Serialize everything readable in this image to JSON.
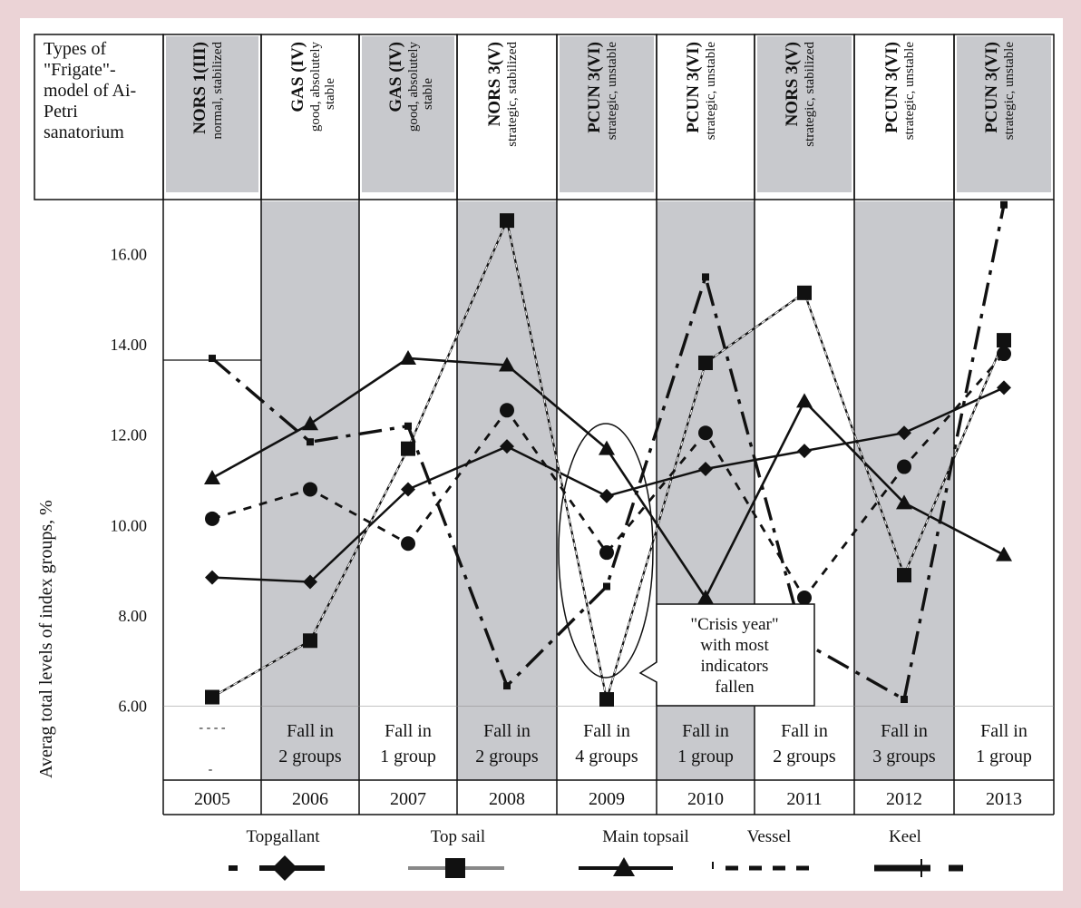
{
  "header_corner_label": [
    "Types of",
    "\"Frigate\"-",
    "model of Ai-",
    "Petri",
    "sanatorium"
  ],
  "column_headers": [
    {
      "year": "2005",
      "type": "NORS 1(III)",
      "desc": "normal, stabilized",
      "shaded": true
    },
    {
      "year": "2006",
      "type": "GAS (IV)",
      "desc": "good, absolutely stable",
      "shaded": false
    },
    {
      "year": "2007",
      "type": "GAS (IV)",
      "desc": "good, absolutely stable",
      "shaded": true
    },
    {
      "year": "2008",
      "type": "NORS 3(V)",
      "desc": "strategic, stabilized",
      "shaded": false
    },
    {
      "year": "2009",
      "type": "PCUN 3(VI)",
      "desc": "strategic, unstable",
      "shaded": true
    },
    {
      "year": "2010",
      "type": "PCUN 3(VI)",
      "desc": "strategic, unstable",
      "shaded": false
    },
    {
      "year": "2011",
      "type": "NORS 3(V)",
      "desc": "strategic, stabilized",
      "shaded": true
    },
    {
      "year": "2012",
      "type": "PCUN 3(VI)",
      "desc": "strategic, unstable",
      "shaded": false
    },
    {
      "year": "2013",
      "type": "PCUN 3(VI)",
      "desc": "strategic, unstable",
      "shaded": true
    }
  ],
  "plot_shading": [
    false,
    true,
    false,
    true,
    false,
    true,
    false,
    true,
    false
  ],
  "fall_labels": [
    [
      "",
      ""
    ],
    [
      "Fall in",
      "2 groups"
    ],
    [
      "Fall in",
      "1 group"
    ],
    [
      "Fall in",
      "2 groups"
    ],
    [
      "Fall in",
      "4 groups"
    ],
    [
      "Fall in",
      "1 group"
    ],
    [
      "Fall in",
      "2 groups"
    ],
    [
      "Fall in",
      "3 groups"
    ],
    [
      "Fall in",
      "1 group"
    ]
  ],
  "callout": [
    "\"Crisis year\"",
    "with most",
    "indicators",
    "fallen"
  ],
  "legend": [
    {
      "label": "Topgallant",
      "marker": "diamond",
      "dash": "dashdot"
    },
    {
      "label": "Top sail",
      "marker": "square",
      "dash": "solid-gray"
    },
    {
      "label": "Main topsail",
      "marker": "triangle",
      "dash": "solid"
    },
    {
      "label": "Vessel",
      "marker": "none",
      "dash": "dashed"
    },
    {
      "label": "Keel",
      "marker": "tick",
      "dash": "longdash"
    }
  ],
  "colors": {
    "background": "#ebd3d6",
    "panel": "#ffffff",
    "shade": "#c8c9cd",
    "ink": "#111111"
  },
  "chart_data": {
    "type": "line",
    "categories": [
      "2005",
      "2006",
      "2007",
      "2008",
      "2009",
      "2010",
      "2011",
      "2012",
      "2013"
    ],
    "ylabel": "Averag total levels of index groups,  %",
    "xlabel": "",
    "yticks": [
      "6.00",
      "8.00",
      "10.00",
      "12.00",
      "14.00",
      "16.00"
    ],
    "ylim": [
      6,
      16
    ],
    "series": [
      {
        "name": "Topgallant",
        "values": [
          8.85,
          8.75,
          10.8,
          11.75,
          10.65,
          11.25,
          11.65,
          12.05,
          13.05
        ]
      },
      {
        "name": "Top sail",
        "values": [
          6.2,
          7.45,
          11.7,
          16.75,
          6.15,
          13.6,
          15.15,
          8.9,
          14.1
        ]
      },
      {
        "name": "Main topsail",
        "values": [
          11.05,
          12.25,
          13.7,
          13.55,
          11.7,
          8.4,
          12.75,
          10.5,
          9.35
        ]
      },
      {
        "name": "Vessel",
        "values": [
          10.15,
          10.8,
          9.6,
          12.55,
          9.4,
          12.05,
          8.4,
          11.3,
          13.8
        ]
      },
      {
        "name": "Keel",
        "values": [
          13.7,
          11.85,
          12.2,
          6.45,
          8.65,
          15.5,
          7.4,
          6.15,
          17.1
        ]
      }
    ]
  }
}
